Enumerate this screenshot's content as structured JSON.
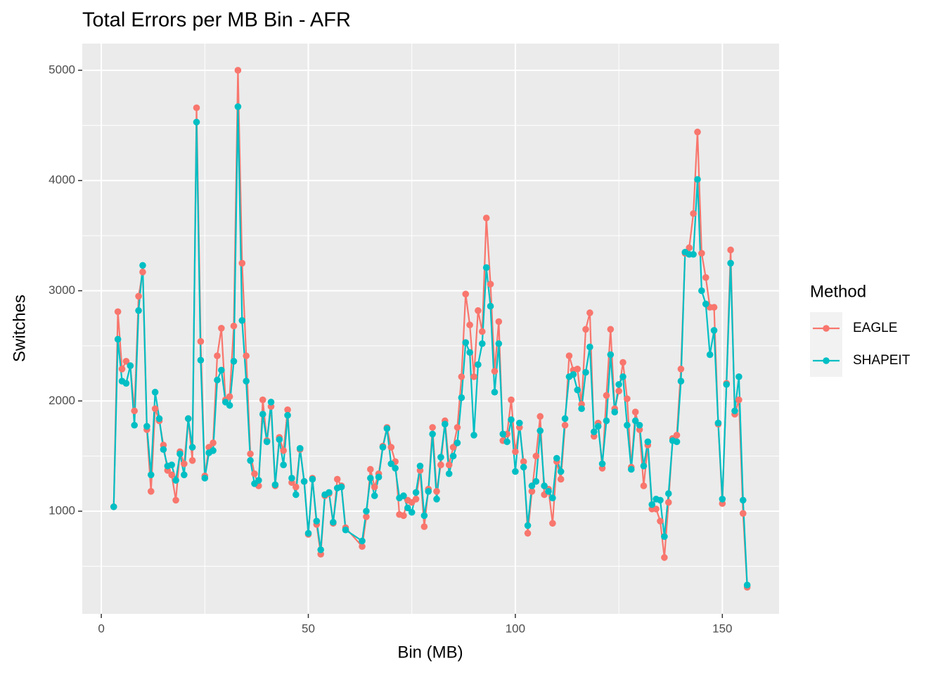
{
  "chart_data": {
    "type": "line",
    "title": "Total Errors per MB Bin - AFR",
    "x_label": "Bin (MB)",
    "y_label": "Switches",
    "legend_title": "Method",
    "legend_position": "right",
    "grid": true,
    "xlim": [
      -4.6,
      163.7
    ],
    "ylim": [
      69,
      5242
    ],
    "xticks": [
      0,
      50,
      100,
      150
    ],
    "yticks": [
      1000,
      2000,
      3000,
      4000,
      5000
    ],
    "xticks_minor": [
      25,
      75,
      125
    ],
    "yticks_minor": [
      500,
      1500,
      2500,
      3500,
      4500
    ],
    "x": [
      3,
      4,
      5,
      6,
      7,
      8,
      9,
      10,
      11,
      12,
      13,
      14,
      15,
      16,
      17,
      18,
      19,
      20,
      21,
      22,
      23,
      24,
      25,
      26,
      27,
      28,
      29,
      30,
      31,
      32,
      33,
      34,
      35,
      36,
      37,
      38,
      39,
      40,
      41,
      42,
      43,
      44,
      45,
      46,
      47,
      48,
      49,
      50,
      51,
      52,
      53,
      54,
      55,
      56,
      57,
      58,
      59,
      63,
      64,
      65,
      66,
      67,
      68,
      69,
      70,
      71,
      72,
      73,
      74,
      75,
      76,
      77,
      78,
      79,
      80,
      81,
      82,
      83,
      84,
      85,
      86,
      87,
      88,
      89,
      90,
      91,
      92,
      93,
      94,
      95,
      96,
      97,
      98,
      99,
      100,
      101,
      102,
      103,
      104,
      105,
      106,
      107,
      108,
      109,
      110,
      111,
      112,
      113,
      114,
      115,
      116,
      117,
      118,
      119,
      120,
      121,
      122,
      123,
      124,
      125,
      126,
      127,
      128,
      129,
      130,
      131,
      132,
      133,
      134,
      135,
      136,
      137,
      138,
      139,
      140,
      141,
      142,
      143,
      144,
      145,
      146,
      147,
      148,
      149,
      150,
      151,
      152,
      153,
      154,
      155,
      156
    ],
    "series": [
      {
        "name": "EAGLE",
        "color": "#f8766d",
        "values": [
          1040,
          2810,
          2290,
          2360,
          2320,
          1910,
          2950,
          3170,
          1740,
          1180,
          1930,
          1820,
          1600,
          1370,
          1330,
          1100,
          1540,
          1430,
          1840,
          1460,
          4660,
          2540,
          1320,
          1580,
          1620,
          2410,
          2660,
          2010,
          2040,
          2680,
          5000,
          3250,
          2410,
          1520,
          1340,
          1230,
          2010,
          1640,
          1950,
          1230,
          1670,
          1550,
          1920,
          1260,
          1220,
          1560,
          1270,
          790,
          1300,
          880,
          610,
          1140,
          1160,
          890,
          1290,
          1230,
          850,
          680,
          950,
          1380,
          1220,
          1340,
          1590,
          1760,
          1580,
          1450,
          970,
          960,
          1100,
          1080,
          1110,
          1370,
          860,
          1200,
          1760,
          1180,
          1420,
          1820,
          1420,
          1580,
          1760,
          2220,
          2970,
          2690,
          2220,
          2820,
          2630,
          3660,
          3060,
          2270,
          2720,
          1640,
          1700,
          2010,
          1540,
          1760,
          1450,
          800,
          1180,
          1500,
          1860,
          1150,
          1200,
          890,
          1450,
          1290,
          1780,
          2410,
          2280,
          2290,
          1970,
          2650,
          2800,
          1680,
          1800,
          1390,
          2050,
          2650,
          1930,
          2090,
          2350,
          2020,
          1400,
          1900,
          1740,
          1230,
          1600,
          1020,
          1020,
          910,
          580,
          1080,
          1660,
          1690,
          2290,
          3340,
          3390,
          3700,
          4440,
          3340,
          3120,
          2850,
          2850,
          1790,
          1070,
          2160,
          3370,
          1880,
          2010,
          980,
          310
        ]
      },
      {
        "name": "SHAPEIT",
        "color": "#00bfc4",
        "values": [
          1040,
          2560,
          2180,
          2160,
          2320,
          1780,
          2820,
          3230,
          1770,
          1330,
          2080,
          1840,
          1560,
          1410,
          1420,
          1280,
          1520,
          1330,
          1840,
          1580,
          4530,
          2370,
          1300,
          1530,
          1550,
          2190,
          2280,
          1990,
          1960,
          2360,
          4670,
          2730,
          2180,
          1460,
          1250,
          1280,
          1880,
          1630,
          1990,
          1240,
          1650,
          1420,
          1870,
          1300,
          1150,
          1570,
          1270,
          800,
          1290,
          910,
          650,
          1150,
          1170,
          900,
          1210,
          1220,
          830,
          730,
          1000,
          1300,
          1140,
          1310,
          1580,
          1750,
          1430,
          1390,
          1120,
          1140,
          1030,
          990,
          1170,
          1410,
          960,
          1180,
          1700,
          1110,
          1490,
          1790,
          1340,
          1500,
          1620,
          2030,
          2530,
          2440,
          1690,
          2330,
          2520,
          3210,
          2860,
          2080,
          2520,
          1700,
          1630,
          1830,
          1360,
          1800,
          1400,
          870,
          1230,
          1270,
          1730,
          1230,
          1180,
          1120,
          1480,
          1360,
          1840,
          2220,
          2240,
          2100,
          1930,
          2260,
          2490,
          1720,
          1770,
          1430,
          1820,
          2420,
          1900,
          2150,
          2220,
          1780,
          1380,
          1820,
          1780,
          1410,
          1630,
          1060,
          1110,
          1100,
          770,
          1160,
          1640,
          1630,
          2180,
          3350,
          3330,
          3330,
          4010,
          3000,
          2880,
          2420,
          2640,
          1800,
          1110,
          2150,
          3250,
          1910,
          2220,
          1100,
          330
        ]
      }
    ]
  }
}
